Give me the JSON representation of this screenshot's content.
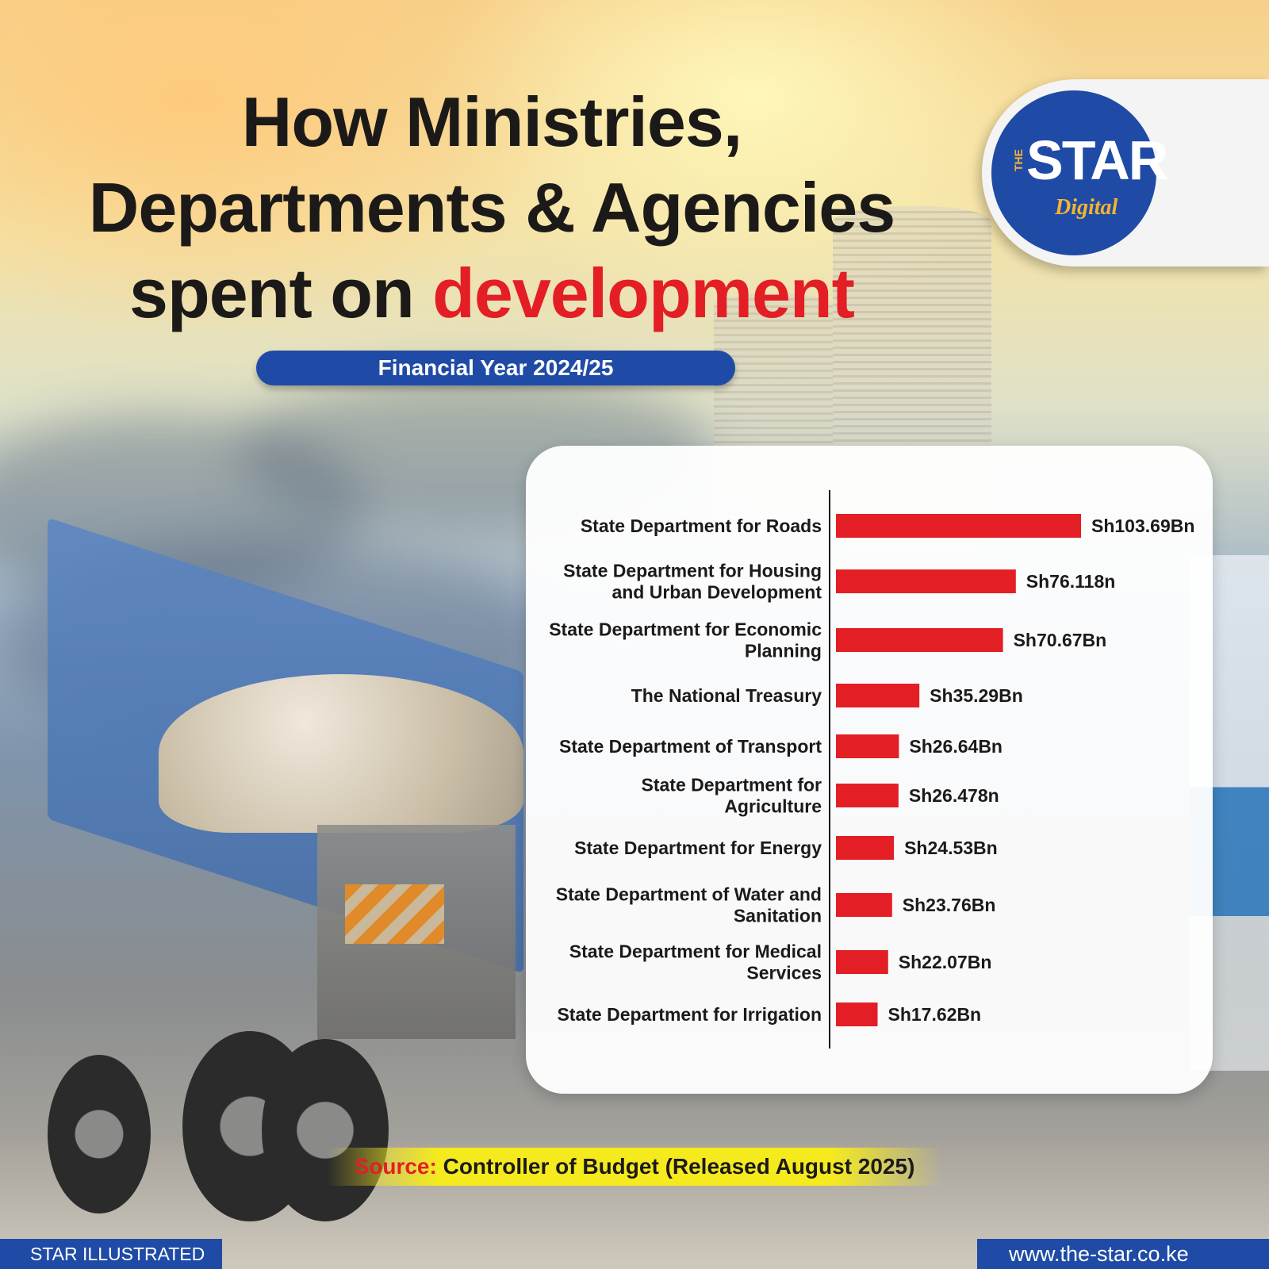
{
  "header": {
    "title_line1": "How Ministries,",
    "title_line2": "Departments & Agencies",
    "title_line3_prefix": "spent on ",
    "title_line3_accent": "development",
    "subtitle": "Financial Year 2024/25"
  },
  "brand": {
    "logo_the": "THE",
    "logo_star": "STAR",
    "logo_digital": "Digital",
    "primary_color": "#1f4ba6",
    "accent_color": "#e31e25",
    "logo_gold": "#f4b431"
  },
  "chart_data": {
    "type": "bar",
    "orientation": "horizontal",
    "categories": [
      [
        "State Department for Roads"
      ],
      [
        "State Department for Housing",
        "and Urban Development"
      ],
      [
        "State Department for Economic",
        "Planning"
      ],
      [
        "The National Treasury"
      ],
      [
        "State Department of Transport"
      ],
      [
        "State Department for",
        "Agriculture"
      ],
      [
        "State Department for Energy"
      ],
      [
        "State Department of Water and",
        "Sanitation"
      ],
      [
        "State Department for Medical",
        "Services"
      ],
      [
        "State Department for Irrigation"
      ]
    ],
    "values": [
      103.69,
      76.11,
      70.67,
      35.29,
      26.64,
      26.47,
      24.53,
      23.76,
      22.07,
      17.62
    ],
    "value_labels": [
      "Sh103.69Bn",
      "Sh76.118n",
      "Sh70.67Bn",
      "Sh35.29Bn",
      "Sh26.64Bn",
      "Sh26.478n",
      "Sh24.53Bn",
      "Sh23.76Bn",
      "Sh22.07Bn",
      "Sh17.62Bn"
    ],
    "unit": "Sh Bn",
    "bar_color": "#e31e25",
    "grid": false,
    "legend": "none"
  },
  "source": {
    "label": "Source:",
    "text": "Controller of Budget (Released August 2025)"
  },
  "footer": {
    "left": "STAR ILLUSTRATED",
    "right": "www.the-star.co.ke"
  }
}
